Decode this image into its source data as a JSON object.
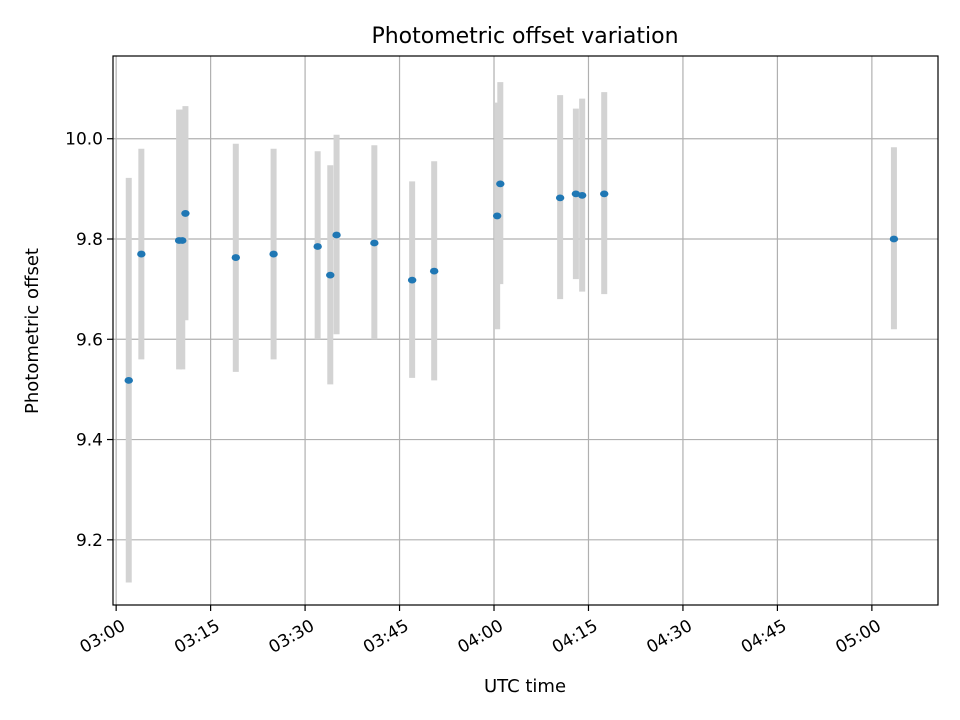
{
  "chart_data": {
    "type": "scatter",
    "title": "Photometric offset variation",
    "xlabel": "UTC time",
    "ylabel": "Photometric offset",
    "x_ticks": [
      "03:00",
      "03:15",
      "03:30",
      "03:45",
      "04:00",
      "04:15",
      "04:30",
      "04:45",
      "05:00"
    ],
    "y_ticks": [
      9.2,
      9.4,
      9.6,
      9.8,
      10.0
    ],
    "y_tick_labels": [
      "9.2",
      "9.4",
      "9.6",
      "9.8",
      "10.0"
    ],
    "xlim": [
      "02:59:30",
      "05:10:30"
    ],
    "ylim": [
      9.07,
      10.165
    ],
    "grid": true,
    "marker_color": "#1f77b4",
    "errorbar_color": "#d3d3d3",
    "points": [
      {
        "x": "03:02",
        "y": 9.518,
        "lo": 9.115,
        "hi": 9.922
      },
      {
        "x": "03:04",
        "y": 9.77,
        "lo": 9.56,
        "hi": 9.98
      },
      {
        "x": "03:10",
        "y": 9.797,
        "lo": 9.54,
        "hi": 10.058
      },
      {
        "x": "03:10:30",
        "y": 9.797,
        "lo": 9.54,
        "hi": 10.058
      },
      {
        "x": "03:11",
        "y": 9.851,
        "lo": 9.638,
        "hi": 10.065
      },
      {
        "x": "03:19",
        "y": 9.763,
        "lo": 9.535,
        "hi": 9.99
      },
      {
        "x": "03:25",
        "y": 9.77,
        "lo": 9.56,
        "hi": 9.98
      },
      {
        "x": "03:32",
        "y": 9.785,
        "lo": 9.6,
        "hi": 9.975
      },
      {
        "x": "03:34",
        "y": 9.728,
        "lo": 9.51,
        "hi": 9.947
      },
      {
        "x": "03:35",
        "y": 9.808,
        "lo": 9.61,
        "hi": 10.008
      },
      {
        "x": "03:41",
        "y": 9.792,
        "lo": 9.6,
        "hi": 9.987
      },
      {
        "x": "03:47",
        "y": 9.718,
        "lo": 9.523,
        "hi": 9.915
      },
      {
        "x": "03:50:30",
        "y": 9.736,
        "lo": 9.518,
        "hi": 9.955
      },
      {
        "x": "04:00:30",
        "y": 9.846,
        "lo": 9.62,
        "hi": 10.072
      },
      {
        "x": "04:01",
        "y": 9.91,
        "lo": 9.71,
        "hi": 10.113
      },
      {
        "x": "04:10:30",
        "y": 9.882,
        "lo": 9.68,
        "hi": 10.087
      },
      {
        "x": "04:13",
        "y": 9.89,
        "lo": 9.72,
        "hi": 10.06
      },
      {
        "x": "04:14",
        "y": 9.887,
        "lo": 9.695,
        "hi": 10.08
      },
      {
        "x": "04:17:30",
        "y": 9.89,
        "lo": 9.69,
        "hi": 10.093
      },
      {
        "x": "05:03.5",
        "y": 9.8,
        "lo": 9.62,
        "hi": 9.983
      }
    ]
  }
}
